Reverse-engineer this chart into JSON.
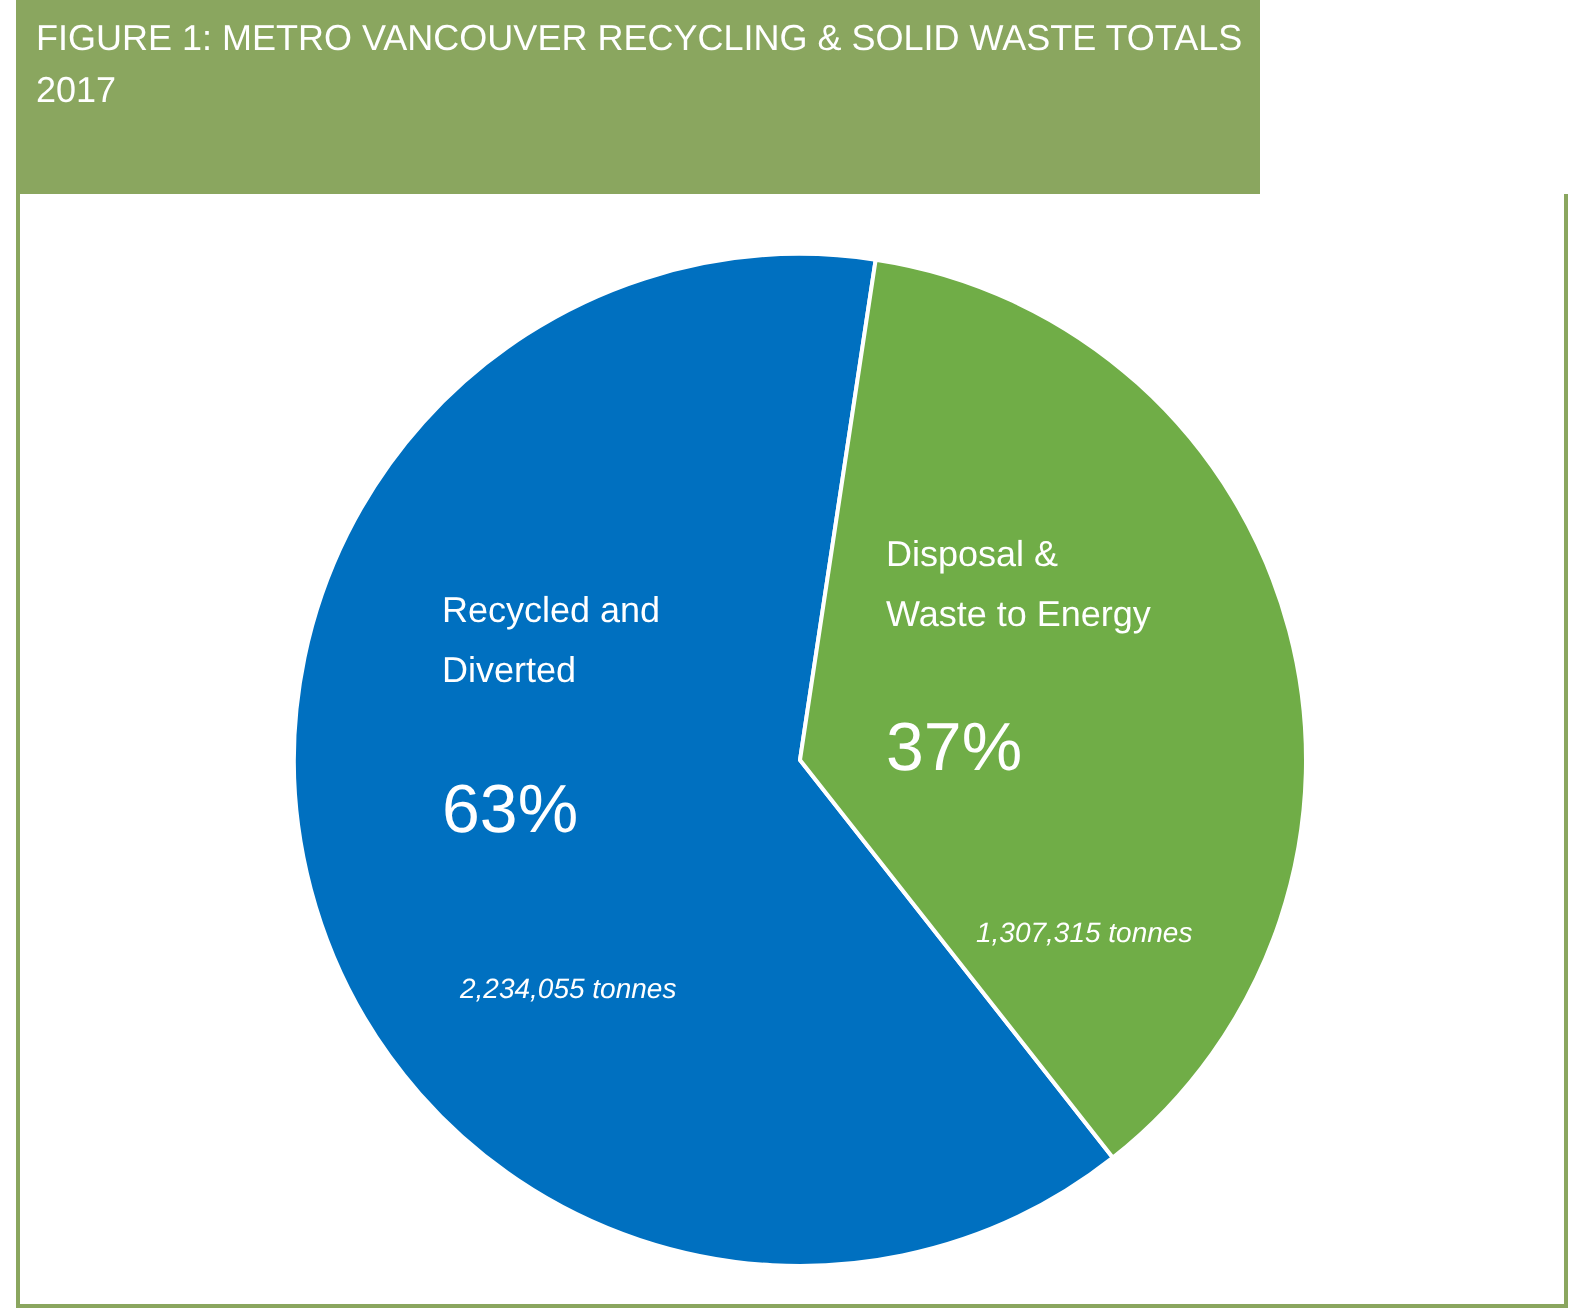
{
  "chart_data": {
    "type": "pie",
    "title": "FIGURE 1: METRO VANCOUVER RECYCLING & SOLID WASTE TOTALS 2017",
    "categories": [
      "Recycled and Diverted",
      "Disposal & Waste to Energy"
    ],
    "values": [
      63,
      37
    ],
    "colors": [
      "#0070c0",
      "#70ad47"
    ],
    "value_labels": [
      "63%",
      "37%"
    ],
    "annotations": [
      "2,234,055 tonnes",
      "1,307,315 tonnes"
    ]
  }
}
